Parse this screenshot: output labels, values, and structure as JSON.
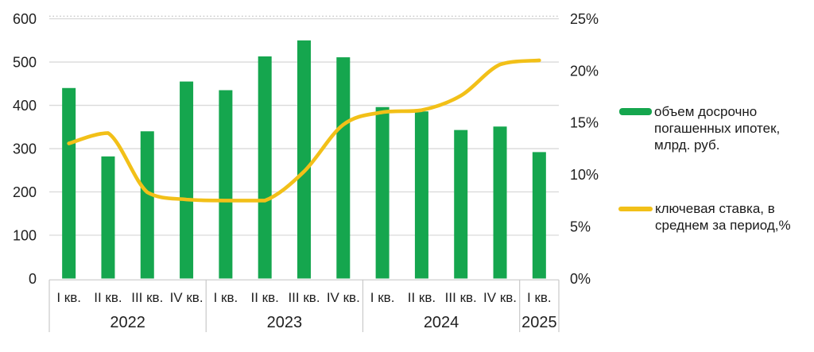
{
  "chart_data": {
    "type": "combo_bar_line",
    "title": "",
    "categories": [
      "I кв.",
      "II кв.",
      "III кв.",
      "IV кв.",
      "I кв.",
      "II кв.",
      "III кв.",
      "IV кв.",
      "I кв.",
      "II кв.",
      "III кв.",
      "IV кв.",
      "I кв."
    ],
    "year_groups": [
      {
        "label": "2022",
        "span": 4
      },
      {
        "label": "2023",
        "span": 4
      },
      {
        "label": "2024",
        "span": 4
      },
      {
        "label": "2025",
        "span": 1
      }
    ],
    "series": [
      {
        "name": "объем досрочно погашенных ипотек, млрд. руб.",
        "type": "bar",
        "axis": "left",
        "values": [
          440,
          282,
          340,
          455,
          435,
          513,
          550,
          511,
          396,
          386,
          343,
          351,
          292
        ]
      },
      {
        "name": "ключевая ставка, в среднем за период,%",
        "type": "line",
        "axis": "right",
        "values": [
          13.0,
          14.0,
          8.3,
          7.6,
          7.5,
          7.5,
          10.3,
          14.8,
          16.0,
          16.2,
          17.6,
          20.6,
          21.0
        ]
      }
    ],
    "left_axis": {
      "min": 0,
      "max": 600,
      "step": 100,
      "tick_labels": [
        "0",
        "100",
        "200",
        "300",
        "400",
        "500",
        "600"
      ]
    },
    "right_axis": {
      "min": 0,
      "max": 25,
      "step": 5,
      "tick_labels": [
        "0%",
        "5%",
        "10%",
        "15%",
        "20%",
        "25%"
      ]
    },
    "grid": true,
    "legend_position": "right"
  },
  "colors": {
    "bar": "#15A64E",
    "line": "#F2C018",
    "grid": "#D9D9D9",
    "grid_dotted": "#C4C4C4",
    "axis_line": "#C9C9C9",
    "text": "#1F1F1F"
  },
  "legend": {
    "volume_label": "объем досрочно погашенных ипотек, млрд. руб.",
    "volume_lines": [
      "объем досрочно",
      "погашенных ипотек,",
      "млрд. руб."
    ],
    "rate_label": "ключевая ставка, в среднем за период,%",
    "rate_lines": [
      "ключевая ставка, в",
      "среднем за период,%"
    ]
  }
}
